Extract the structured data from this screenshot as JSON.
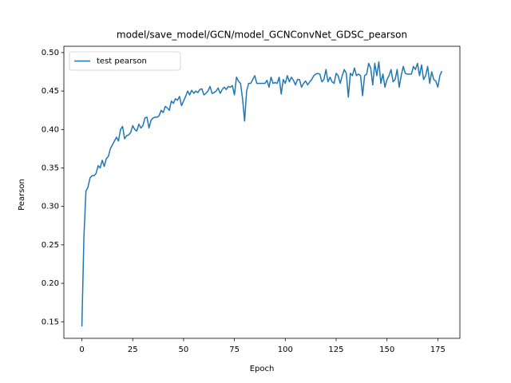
{
  "chart_data": {
    "type": "line",
    "title": "model/save_model/GCN/model_GCNConvNet_GDSC_pearson",
    "xlabel": "Epoch",
    "ylabel": "Pearson",
    "legend": "upper left",
    "x": [
      0,
      1,
      2,
      3,
      4,
      5,
      6,
      7,
      8,
      9,
      10,
      11,
      12,
      13,
      14,
      15,
      16,
      17,
      18,
      19,
      20,
      21,
      22,
      23,
      24,
      25,
      26,
      27,
      28,
      29,
      30,
      31,
      32,
      33,
      34,
      35,
      36,
      37,
      38,
      39,
      40,
      41,
      42,
      43,
      44,
      45,
      46,
      47,
      48,
      49,
      50,
      51,
      52,
      53,
      54,
      55,
      56,
      57,
      58,
      59,
      60,
      61,
      62,
      63,
      64,
      65,
      66,
      67,
      68,
      69,
      70,
      71,
      72,
      73,
      74,
      75,
      76,
      77,
      78,
      79,
      80,
      81,
      82,
      83,
      84,
      85,
      86,
      87,
      88,
      89,
      90,
      91,
      92,
      93,
      94,
      95,
      96,
      97,
      98,
      99,
      100,
      101,
      102,
      103,
      104,
      105,
      106,
      107,
      108,
      109,
      110,
      111,
      112,
      113,
      114,
      115,
      116,
      117,
      118,
      119,
      120,
      121,
      122,
      123,
      124,
      125,
      126,
      127,
      128,
      129,
      130,
      131,
      132,
      133,
      134,
      135,
      136,
      137,
      138,
      139,
      140,
      141,
      142,
      143,
      144,
      145,
      146,
      147,
      148,
      149,
      150,
      151,
      152,
      153,
      154,
      155,
      156,
      157,
      158,
      159,
      160,
      161,
      162,
      163,
      164,
      165,
      166,
      167,
      168,
      169,
      170,
      171,
      172,
      173,
      174,
      175,
      176,
      177
    ],
    "series": [
      {
        "name": "test pearson",
        "color": "#1f77b4",
        "values": [
          0.144,
          0.26,
          0.32,
          0.325,
          0.337,
          0.34,
          0.34,
          0.343,
          0.353,
          0.35,
          0.36,
          0.352,
          0.362,
          0.365,
          0.375,
          0.38,
          0.385,
          0.39,
          0.385,
          0.4,
          0.404,
          0.388,
          0.392,
          0.393,
          0.396,
          0.405,
          0.4,
          0.398,
          0.407,
          0.402,
          0.405,
          0.415,
          0.416,
          0.402,
          0.412,
          0.415,
          0.416,
          0.416,
          0.418,
          0.425,
          0.422,
          0.43,
          0.428,
          0.425,
          0.437,
          0.434,
          0.44,
          0.438,
          0.443,
          0.431,
          0.437,
          0.443,
          0.45,
          0.445,
          0.451,
          0.447,
          0.45,
          0.448,
          0.452,
          0.453,
          0.445,
          0.447,
          0.45,
          0.456,
          0.447,
          0.448,
          0.45,
          0.454,
          0.447,
          0.452,
          0.455,
          0.452,
          0.456,
          0.455,
          0.457,
          0.445,
          0.468,
          0.463,
          0.46,
          0.44,
          0.411,
          0.45,
          0.46,
          0.46,
          0.465,
          0.47,
          0.46,
          0.46,
          0.46,
          0.46,
          0.46,
          0.464,
          0.455,
          0.468,
          0.46,
          0.461,
          0.46,
          0.468,
          0.446,
          0.465,
          0.46,
          0.47,
          0.462,
          0.468,
          0.464,
          0.458,
          0.465,
          0.465,
          0.455,
          0.46,
          0.463,
          0.458,
          0.462,
          0.465,
          0.47,
          0.472,
          0.473,
          0.472,
          0.462,
          0.465,
          0.478,
          0.462,
          0.468,
          0.462,
          0.46,
          0.473,
          0.47,
          0.46,
          0.47,
          0.478,
          0.473,
          0.442,
          0.473,
          0.47,
          0.48,
          0.47,
          0.472,
          0.47,
          0.444,
          0.47,
          0.472,
          0.486,
          0.48,
          0.458,
          0.486,
          0.47,
          0.488,
          0.46,
          0.472,
          0.455,
          0.465,
          0.47,
          0.478,
          0.462,
          0.465,
          0.478,
          0.455,
          0.47,
          0.482,
          0.473,
          0.472,
          0.472,
          0.472,
          0.482,
          0.478,
          0.486,
          0.47,
          0.484,
          0.465,
          0.47,
          0.482,
          0.46,
          0.475,
          0.465,
          0.463,
          0.455,
          0.47,
          0.476
        ]
      }
    ],
    "xlim": [
      -8.85,
      185.85
    ],
    "xticks": [
      0,
      25,
      50,
      75,
      100,
      125,
      150,
      175
    ],
    "ylim": [
      0.1285,
      0.5082
    ],
    "yticks": [
      0.15,
      {
        "value": 0.2,
        "label": "0.20"
      },
      0.25,
      {
        "value": 0.3,
        "label": "0.30"
      },
      0.35,
      {
        "value": 0.4,
        "label": "0.40"
      },
      0.45,
      {
        "value": 0.5,
        "label": "0.50"
      }
    ]
  }
}
